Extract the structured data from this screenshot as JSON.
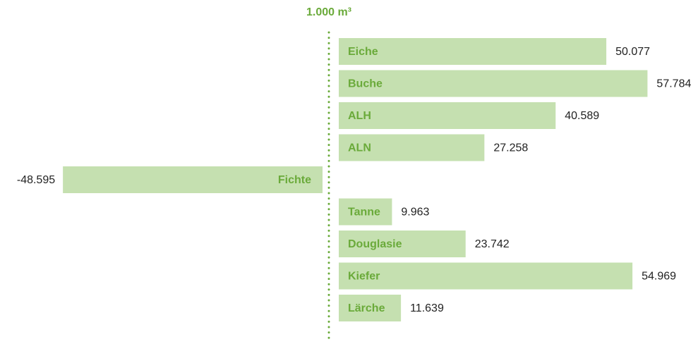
{
  "chart_data": {
    "type": "bar",
    "orientation": "horizontal",
    "axis_label": "1.000 m³",
    "categories": [
      "Eiche",
      "Buche",
      "ALH",
      "ALN",
      "Fichte",
      "Tanne",
      "Douglasie",
      "Kiefer",
      "Lärche"
    ],
    "values": [
      50077,
      57784,
      40589,
      27258,
      -48595,
      9963,
      23742,
      54969,
      11639
    ],
    "value_labels": [
      "50.077",
      "57.784",
      "40.589",
      "27.258",
      "-48.595",
      "9.963",
      "23.742",
      "54.969",
      "11.639"
    ],
    "color": "#c5e0b0",
    "label_color": "#6aaa3a",
    "grid": false
  }
}
